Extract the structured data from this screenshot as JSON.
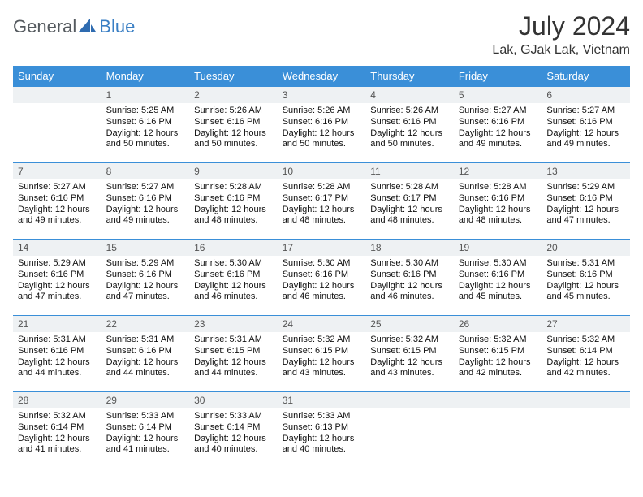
{
  "brand": {
    "word1": "General",
    "word2": "Blue"
  },
  "title": "July 2024",
  "location": "Lak, GJak Lak, Vietnam",
  "colors": {
    "header_bg": "#3a8fd8",
    "header_text": "#ffffff",
    "daybar_bg": "#eef1f3",
    "daybar_text": "#555555",
    "border": "#3a8fd8",
    "brand_gray": "#555a5f",
    "brand_blue": "#3a7fc4"
  },
  "weekdays": [
    "Sunday",
    "Monday",
    "Tuesday",
    "Wednesday",
    "Thursday",
    "Friday",
    "Saturday"
  ],
  "weeks": [
    [
      null,
      {
        "n": "1",
        "sr": "5:25 AM",
        "ss": "6:16 PM",
        "dl": "12 hours and 50 minutes."
      },
      {
        "n": "2",
        "sr": "5:26 AM",
        "ss": "6:16 PM",
        "dl": "12 hours and 50 minutes."
      },
      {
        "n": "3",
        "sr": "5:26 AM",
        "ss": "6:16 PM",
        "dl": "12 hours and 50 minutes."
      },
      {
        "n": "4",
        "sr": "5:26 AM",
        "ss": "6:16 PM",
        "dl": "12 hours and 50 minutes."
      },
      {
        "n": "5",
        "sr": "5:27 AM",
        "ss": "6:16 PM",
        "dl": "12 hours and 49 minutes."
      },
      {
        "n": "6",
        "sr": "5:27 AM",
        "ss": "6:16 PM",
        "dl": "12 hours and 49 minutes."
      }
    ],
    [
      {
        "n": "7",
        "sr": "5:27 AM",
        "ss": "6:16 PM",
        "dl": "12 hours and 49 minutes."
      },
      {
        "n": "8",
        "sr": "5:27 AM",
        "ss": "6:16 PM",
        "dl": "12 hours and 49 minutes."
      },
      {
        "n": "9",
        "sr": "5:28 AM",
        "ss": "6:16 PM",
        "dl": "12 hours and 48 minutes."
      },
      {
        "n": "10",
        "sr": "5:28 AM",
        "ss": "6:17 PM",
        "dl": "12 hours and 48 minutes."
      },
      {
        "n": "11",
        "sr": "5:28 AM",
        "ss": "6:17 PM",
        "dl": "12 hours and 48 minutes."
      },
      {
        "n": "12",
        "sr": "5:28 AM",
        "ss": "6:16 PM",
        "dl": "12 hours and 48 minutes."
      },
      {
        "n": "13",
        "sr": "5:29 AM",
        "ss": "6:16 PM",
        "dl": "12 hours and 47 minutes."
      }
    ],
    [
      {
        "n": "14",
        "sr": "5:29 AM",
        "ss": "6:16 PM",
        "dl": "12 hours and 47 minutes."
      },
      {
        "n": "15",
        "sr": "5:29 AM",
        "ss": "6:16 PM",
        "dl": "12 hours and 47 minutes."
      },
      {
        "n": "16",
        "sr": "5:30 AM",
        "ss": "6:16 PM",
        "dl": "12 hours and 46 minutes."
      },
      {
        "n": "17",
        "sr": "5:30 AM",
        "ss": "6:16 PM",
        "dl": "12 hours and 46 minutes."
      },
      {
        "n": "18",
        "sr": "5:30 AM",
        "ss": "6:16 PM",
        "dl": "12 hours and 46 minutes."
      },
      {
        "n": "19",
        "sr": "5:30 AM",
        "ss": "6:16 PM",
        "dl": "12 hours and 45 minutes."
      },
      {
        "n": "20",
        "sr": "5:31 AM",
        "ss": "6:16 PM",
        "dl": "12 hours and 45 minutes."
      }
    ],
    [
      {
        "n": "21",
        "sr": "5:31 AM",
        "ss": "6:16 PM",
        "dl": "12 hours and 44 minutes."
      },
      {
        "n": "22",
        "sr": "5:31 AM",
        "ss": "6:16 PM",
        "dl": "12 hours and 44 minutes."
      },
      {
        "n": "23",
        "sr": "5:31 AM",
        "ss": "6:15 PM",
        "dl": "12 hours and 44 minutes."
      },
      {
        "n": "24",
        "sr": "5:32 AM",
        "ss": "6:15 PM",
        "dl": "12 hours and 43 minutes."
      },
      {
        "n": "25",
        "sr": "5:32 AM",
        "ss": "6:15 PM",
        "dl": "12 hours and 43 minutes."
      },
      {
        "n": "26",
        "sr": "5:32 AM",
        "ss": "6:15 PM",
        "dl": "12 hours and 42 minutes."
      },
      {
        "n": "27",
        "sr": "5:32 AM",
        "ss": "6:14 PM",
        "dl": "12 hours and 42 minutes."
      }
    ],
    [
      {
        "n": "28",
        "sr": "5:32 AM",
        "ss": "6:14 PM",
        "dl": "12 hours and 41 minutes."
      },
      {
        "n": "29",
        "sr": "5:33 AM",
        "ss": "6:14 PM",
        "dl": "12 hours and 41 minutes."
      },
      {
        "n": "30",
        "sr": "5:33 AM",
        "ss": "6:14 PM",
        "dl": "12 hours and 40 minutes."
      },
      {
        "n": "31",
        "sr": "5:33 AM",
        "ss": "6:13 PM",
        "dl": "12 hours and 40 minutes."
      },
      null,
      null,
      null
    ]
  ],
  "labels": {
    "sunrise": "Sunrise:",
    "sunset": "Sunset:",
    "daylight": "Daylight:"
  }
}
